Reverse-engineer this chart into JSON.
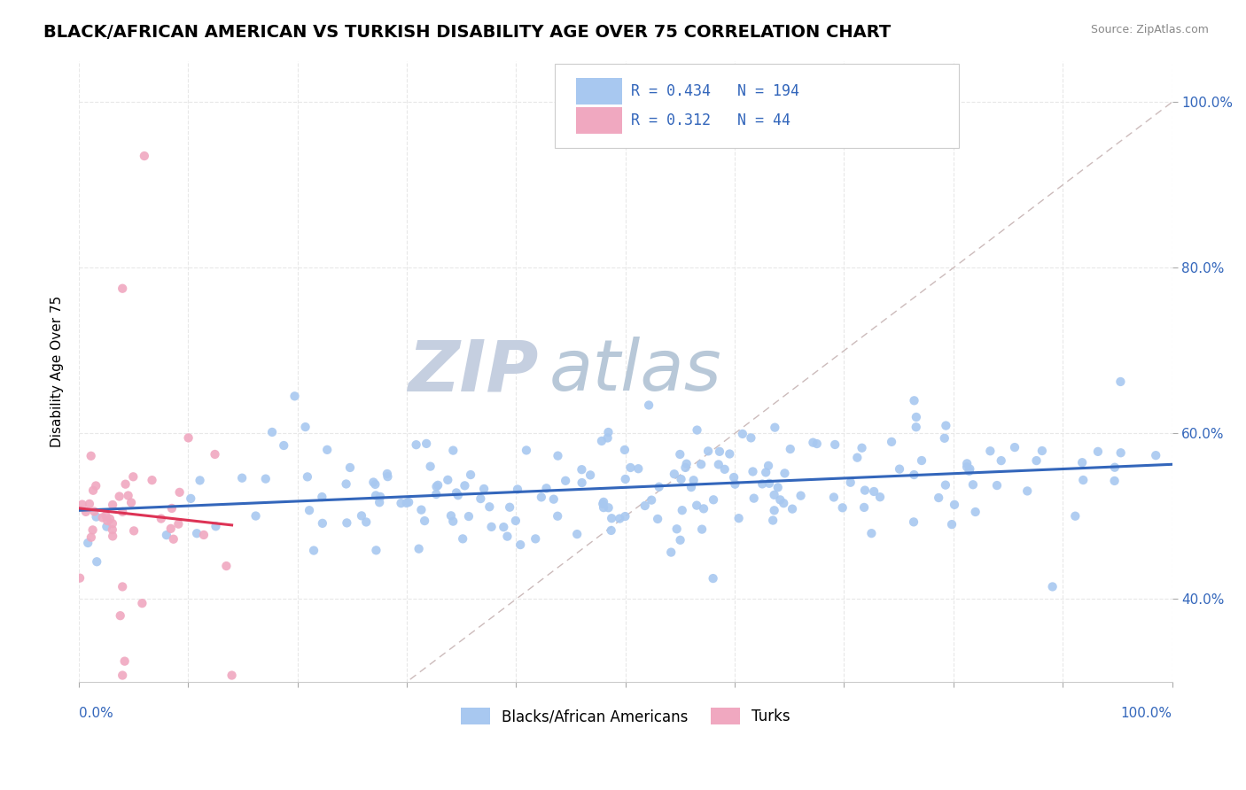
{
  "title": "BLACK/AFRICAN AMERICAN VS TURKISH DISABILITY AGE OVER 75 CORRELATION CHART",
  "source": "Source: ZipAtlas.com",
  "ylabel": "Disability Age Over 75",
  "legend_blue_r": "0.434",
  "legend_blue_n": "194",
  "legend_pink_r": "0.312",
  "legend_pink_n": "44",
  "legend_label_blue": "Blacks/African Americans",
  "legend_label_pink": "Turks",
  "blue_color": "#a8c8f0",
  "pink_color": "#f0a8c0",
  "blue_line_color": "#3366bb",
  "pink_line_color": "#dd3355",
  "diag_color": "#ccbbbb",
  "watermark_zip": "ZIP",
  "watermark_atlas": "atlas",
  "watermark_color_zip": "#c5cfe0",
  "watermark_color_atlas": "#b8c8d8",
  "background_color": "#ffffff",
  "grid_color": "#e8e8e8",
  "title_fontsize": 14,
  "xmin": 0.0,
  "xmax": 1.0,
  "ymin": 0.3,
  "ymax": 1.05,
  "ytick_vals": [
    0.4,
    0.6,
    0.8,
    1.0
  ],
  "ytick_labels": [
    "40.0%",
    "60.0%",
    "80.0%",
    "100.0%"
  ]
}
